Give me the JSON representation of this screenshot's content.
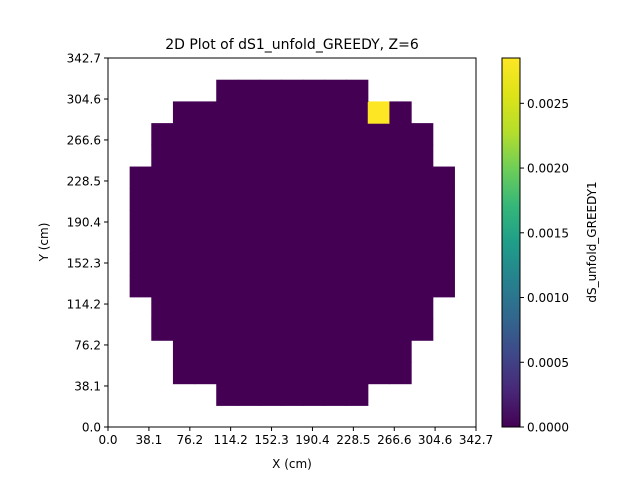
{
  "chart_data": {
    "type": "heatmap",
    "title": "2D Plot of dS1_unfold_GREEDY, Z=6",
    "xlabel": "X (cm)",
    "ylabel": "Y (cm)",
    "xlim": [
      0.0,
      342.7
    ],
    "ylim": [
      0.0,
      342.7
    ],
    "xticks": [
      "0.0",
      "38.1",
      "76.2",
      "114.2",
      "152.3",
      "190.4",
      "228.5",
      "266.6",
      "304.6",
      "342.7"
    ],
    "yticks": [
      "0.0",
      "38.1",
      "76.2",
      "114.2",
      "152.3",
      "190.4",
      "228.5",
      "266.6",
      "304.6",
      "342.7"
    ],
    "grid": {
      "cols": 17,
      "rows": 17
    },
    "x_edges": [
      0.0,
      20.16,
      40.31,
      60.47,
      80.64,
      100.79,
      120.95,
      141.11,
      161.27,
      181.43,
      201.59,
      221.74,
      241.9,
      262.06,
      282.22,
      302.38,
      322.54,
      342.7
    ],
    "row_spans": [
      [],
      [
        5,
        11
      ],
      [
        3,
        13
      ],
      [
        3,
        13
      ],
      [
        2,
        14
      ],
      [
        2,
        14
      ],
      [
        1,
        15
      ],
      [
        1,
        15
      ],
      [
        1,
        15
      ],
      [
        1,
        15
      ],
      [
        1,
        15
      ],
      [
        1,
        15
      ],
      [
        2,
        14
      ],
      [
        2,
        14
      ],
      [
        3,
        13
      ],
      [
        5,
        11
      ],
      []
    ],
    "row_span_note": "row index 0 = bottom; [first_col, last_col] inclusive, value 0.0 unless listed in hot_cells",
    "hot_cells": [
      {
        "col": 12,
        "row": 14,
        "value": 0.00285
      }
    ],
    "colorbar": {
      "label": "dS_unfold_GREEDY1",
      "min": 0.0,
      "max": 0.00285,
      "ticks": [
        "0.0000",
        "0.0005",
        "0.0010",
        "0.0015",
        "0.0020",
        "0.0025"
      ],
      "tick_values": [
        0.0,
        0.0005,
        0.001,
        0.0015,
        0.002,
        0.0025
      ],
      "colormap": "viridis"
    }
  }
}
